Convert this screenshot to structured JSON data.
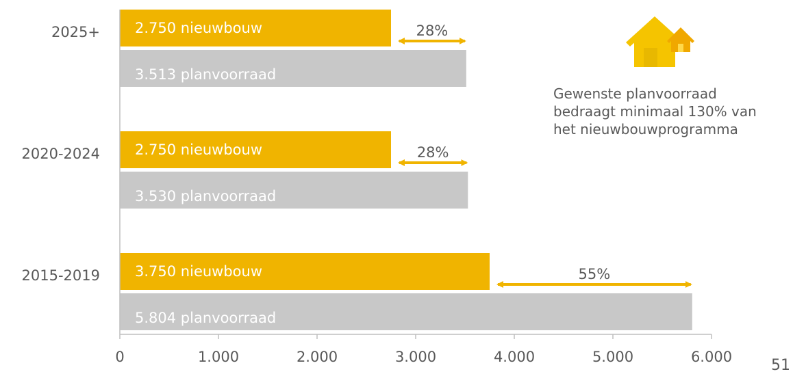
{
  "chart_data": {
    "type": "bar",
    "orientation": "horizontal",
    "categories": [
      "2025+",
      "2020-2024",
      "2015-2019"
    ],
    "series": [
      {
        "name": "nieuwbouw",
        "values": [
          2750,
          2750,
          3750
        ],
        "labels": [
          "2.750 nieuwbouw",
          "2.750 nieuwbouw",
          "3.750 nieuwbouw"
        ]
      },
      {
        "name": "planvoorraad",
        "values": [
          3513,
          3530,
          5804
        ],
        "labels": [
          "3.513 planvoorraad",
          "3.530 planvoorraad",
          "5.804 planvoorraad"
        ]
      }
    ],
    "differences": [
      "28%",
      "28%",
      "55%"
    ],
    "xlim": [
      0,
      6000
    ],
    "xticks": [
      0,
      1000,
      2000,
      3000,
      4000,
      5000,
      6000
    ],
    "xtick_labels": [
      "0",
      "1.000",
      "2.000",
      "3.000",
      "4.000",
      "5.000",
      "6.000"
    ],
    "grid": false,
    "colors": {
      "nieuwbouw": "#F0B400",
      "planvoorraad": "#C8C8C8",
      "arrow": "#F0B400",
      "axis": "#BFBFBF",
      "text": "#595959"
    }
  },
  "annotation": {
    "lines": [
      "Gewenste planvoorraad",
      "bedraagt minimaal 130% van",
      "het nieuwbouwprogramma"
    ],
    "icon": "house-icon"
  },
  "page_number": "51"
}
